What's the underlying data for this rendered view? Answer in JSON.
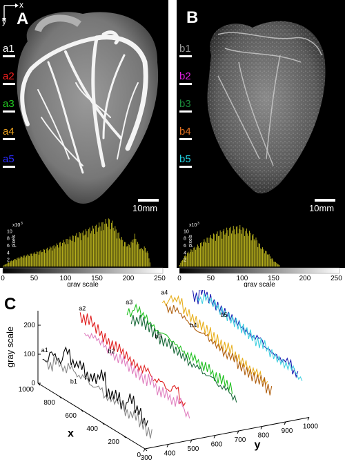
{
  "panel_a": {
    "letter": "A",
    "axis_x": "x",
    "axis_y": "y",
    "rows": [
      {
        "label": "a1",
        "color": "#ffffff"
      },
      {
        "label": "a2",
        "color": "#ff2020"
      },
      {
        "label": "a3",
        "color": "#22cc22"
      },
      {
        "label": "a4",
        "color": "#e8a020"
      },
      {
        "label": "a5",
        "color": "#2a2aff"
      }
    ],
    "scale_bar": "10mm"
  },
  "panel_b": {
    "letter": "B",
    "rows": [
      {
        "label": "b1",
        "color": "#9a9a9a"
      },
      {
        "label": "b2",
        "color": "#e020e0"
      },
      {
        "label": "b3",
        "color": "#1a8a3a"
      },
      {
        "label": "b4",
        "color": "#e07020"
      },
      {
        "label": "b5",
        "color": "#20d0e0"
      }
    ],
    "scale_bar": "10mm"
  },
  "chart_data": [
    {
      "type": "bar",
      "panel": "A",
      "xlabel": "gray  scale",
      "ylabel": "pixels",
      "y_multiplier": "x10",
      "y_exponent": "3",
      "x_ticks": [
        "0",
        "50",
        "100",
        "150",
        "200",
        "250"
      ],
      "y_ticks": [
        "2",
        "4",
        "6",
        "8",
        "10"
      ],
      "xlim": [
        0,
        255
      ],
      "ylim": [
        0,
        12
      ],
      "bar_color": "#c8c020",
      "x": [
        0,
        10,
        20,
        30,
        40,
        50,
        60,
        70,
        80,
        90,
        100,
        110,
        120,
        130,
        140,
        150,
        160,
        165,
        170,
        175,
        180,
        190,
        195,
        200,
        205,
        210,
        215,
        220,
        225,
        230,
        235
      ],
      "values": [
        0.2,
        1.2,
        2.0,
        2.6,
        3.0,
        3.5,
        4.0,
        4.6,
        5.2,
        6.0,
        6.8,
        7.6,
        8.4,
        9.0,
        9.8,
        10.5,
        11.2,
        11.8,
        12.0,
        11.0,
        9.5,
        7.0,
        6.0,
        5.5,
        6.5,
        8.0,
        6.0,
        4.5,
        5.0,
        4.0,
        0.5
      ]
    },
    {
      "type": "bar",
      "panel": "B",
      "xlabel": "gray  scale",
      "ylabel": "pixels",
      "y_multiplier": "x10",
      "y_exponent": "3",
      "x_ticks": [
        "0",
        "50",
        "100",
        "150",
        "200",
        "250"
      ],
      "y_ticks": [
        "2",
        "4",
        "6",
        "8",
        "10"
      ],
      "xlim": [
        0,
        255
      ],
      "ylim": [
        0,
        12
      ],
      "bar_color": "#c8c020",
      "x": [
        0,
        5,
        10,
        20,
        30,
        40,
        50,
        60,
        70,
        80,
        90,
        95,
        100,
        110,
        120,
        130,
        140,
        150,
        160
      ],
      "values": [
        0.5,
        2.0,
        3.2,
        4.5,
        5.5,
        6.8,
        7.8,
        8.6,
        9.2,
        9.8,
        10.0,
        10.2,
        9.8,
        9.0,
        7.5,
        5.0,
        3.5,
        1.5,
        0.2
      ]
    },
    {
      "type": "line",
      "panel": "C",
      "title": "C",
      "zlabel": "gray scale",
      "xlabel": "x",
      "ylabel": "y",
      "z_ticks": [
        "0",
        "100",
        "200"
      ],
      "x_ticks": [
        "0",
        "200",
        "400",
        "600",
        "800",
        "1000"
      ],
      "y_ticks": [
        "300",
        "400",
        "500",
        "600",
        "700",
        "800",
        "900",
        "1000"
      ],
      "zlim": [
        0,
        250
      ],
      "xlim": [
        0,
        1000
      ],
      "ylim": [
        300,
        1000
      ],
      "series": [
        {
          "name": "a1",
          "color": "#000000",
          "y": 320,
          "z": [
            80,
            120,
            110,
            160,
            130,
            140,
            115,
            125,
            150,
            100,
            110,
            90,
            130,
            105,
            80,
            40
          ]
        },
        {
          "name": "b1",
          "color": "#888888",
          "y": 320,
          "z": [
            60,
            90,
            80,
            100,
            85,
            95,
            80,
            90,
            70,
            75,
            85,
            60,
            70,
            55,
            40,
            20
          ]
        },
        {
          "name": "a2",
          "color": "#e02020",
          "y": 480,
          "z": [
            200,
            210,
            195,
            180,
            170,
            175,
            165,
            155,
            150,
            160,
            140,
            150,
            135,
            160,
            120,
            40
          ]
        },
        {
          "name": "b2",
          "color": "#e080c0",
          "y": 480,
          "z": [
            140,
            150,
            145,
            135,
            125,
            130,
            120,
            115,
            110,
            120,
            100,
            105,
            95,
            110,
            80,
            20
          ]
        },
        {
          "name": "a3",
          "color": "#20c020",
          "y": 680,
          "z": [
            190,
            220,
            210,
            195,
            185,
            190,
            180,
            175,
            165,
            170,
            160,
            165,
            150,
            155,
            145,
            40
          ]
        },
        {
          "name": "b3",
          "color": "#1a6a3a",
          "y": 680,
          "z": [
            160,
            175,
            170,
            160,
            150,
            155,
            145,
            140,
            130,
            135,
            125,
            130,
            115,
            120,
            105,
            20
          ]
        },
        {
          "name": "a4",
          "color": "#e8b020",
          "y": 830,
          "z": [
            200,
            230,
            240,
            215,
            205,
            200,
            195,
            185,
            175,
            180,
            165,
            160,
            150,
            155,
            140,
            40
          ]
        },
        {
          "name": "b4",
          "color": "#b06010",
          "y": 830,
          "z": [
            175,
            190,
            180,
            170,
            160,
            165,
            155,
            150,
            140,
            145,
            130,
            125,
            120,
            125,
            110,
            20
          ]
        },
        {
          "name": "a5",
          "color": "#1a1ab0",
          "y": 960,
          "z": [
            200,
            240,
            225,
            215,
            210,
            205,
            200,
            190,
            185,
            195,
            175,
            170,
            165,
            175,
            150,
            40
          ]
        },
        {
          "name": "b5",
          "color": "#40d0e0",
          "y": 960,
          "z": [
            190,
            210,
            205,
            195,
            190,
            185,
            180,
            175,
            165,
            170,
            155,
            150,
            145,
            150,
            130,
            20
          ]
        }
      ]
    }
  ]
}
